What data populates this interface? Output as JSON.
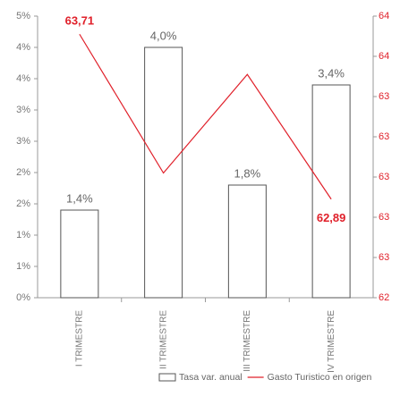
{
  "chart_data": {
    "type": "bar-line",
    "categories": [
      "I TRIMESTRE",
      "II TRIMESTRE",
      "III TRIMESTRE",
      "IV TRIMESTRE"
    ],
    "series": [
      {
        "name": "Tasa var. anual",
        "type": "bar",
        "color": "#ffffff",
        "values": [
          1.4,
          4.0,
          1.8,
          3.4
        ],
        "value_labels": [
          "1,4%",
          "4,0%",
          "1,8%",
          "3,4%"
        ]
      },
      {
        "name": "Gasto Turistico en origen",
        "type": "line",
        "axis": "y2",
        "color": "#e0202a",
        "values": [
          63.71,
          63.02,
          63.51,
          62.89
        ],
        "value_labels": [
          "63,71",
          null,
          null,
          "62,89"
        ]
      }
    ],
    "ylim": [
      0,
      4.5
    ],
    "yticks": [
      {
        "value": 0,
        "label": "0%"
      },
      {
        "value": 0.5,
        "label": "1%"
      },
      {
        "value": 1,
        "label": "1%"
      },
      {
        "value": 1.5,
        "label": "2%"
      },
      {
        "value": 2,
        "label": "2%"
      },
      {
        "value": 2.5,
        "label": "3%"
      },
      {
        "value": 3,
        "label": "3%"
      },
      {
        "value": 3.5,
        "label": "4%"
      },
      {
        "value": 4,
        "label": "4%"
      },
      {
        "value": 4.5,
        "label": "5%"
      }
    ],
    "y2lim": [
      62.4,
      63.8
    ],
    "y2ticks": [
      {
        "value": 62.4,
        "label": "62"
      },
      {
        "value": 62.6,
        "label": "63"
      },
      {
        "value": 62.8,
        "label": "63"
      },
      {
        "value": 63.0,
        "label": "63"
      },
      {
        "value": 63.2,
        "label": "63"
      },
      {
        "value": 63.4,
        "label": "63"
      },
      {
        "value": 63.6,
        "label": "64"
      },
      {
        "value": 63.8,
        "label": "64"
      }
    ],
    "legend": "bottom-right"
  }
}
